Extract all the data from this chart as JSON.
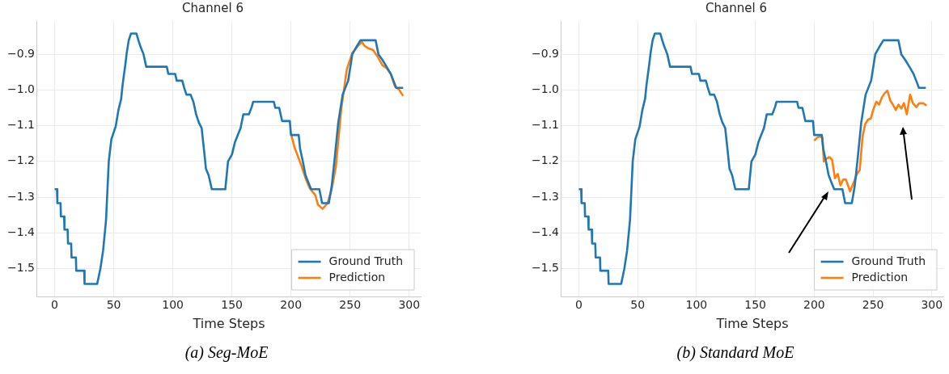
{
  "chart_data": [
    {
      "type": "line",
      "title": "Channel 6",
      "xlabel": "Time Steps",
      "xlim": [
        -14.75,
        309.75
      ],
      "ylim": [
        -1.578,
        -0.807
      ],
      "xticks": [
        0,
        50,
        100,
        150,
        200,
        250,
        300
      ],
      "yticks": [
        {
          "value": -1.5,
          "label": "−1.5"
        },
        {
          "value": -1.4,
          "label": "−1.4"
        },
        {
          "value": -1.3,
          "label": "−1.3"
        },
        {
          "value": -1.2,
          "label": "−1.2"
        },
        {
          "value": -1.1,
          "label": "−1.1"
        },
        {
          "value": -1.0,
          "label": "−1.0"
        },
        {
          "value": -0.9,
          "label": "−0.9"
        }
      ],
      "grid": true,
      "legend": "bottom right",
      "annotations": [
        "(a) Seg-MoE"
      ],
      "series": [
        {
          "name": "Ground Truth",
          "color": "#1f77b4",
          "x": [
            0,
            2,
            2.3,
            5,
            5.3,
            8,
            8.3,
            11,
            11.3,
            14,
            14.3,
            18,
            18.3,
            25,
            25.3,
            36,
            38.7,
            41,
            43.5,
            45.8,
            48,
            51.6,
            54,
            56.3,
            57.5,
            59.9,
            61,
            62.7,
            64.6,
            69.2,
            70.9,
            72.8,
            75.2,
            77.5,
            94.9,
            96.2,
            102,
            103.3,
            108,
            109.6,
            111.5,
            115,
            117.4,
            119.7,
            122,
            124.4,
            126.8,
            128,
            130.3,
            133,
            144.4,
            146.7,
            150,
            152.6,
            155,
            157.3,
            159.7,
            164.4,
            166.7,
            168,
            185.5,
            186.7,
            190,
            192.5,
            199,
            200,
            206.5,
            207.7,
            210,
            212.3,
            214.7,
            217,
            224,
            226.3,
            232,
            234.4,
            236.7,
            240,
            243.7,
            248.4,
            251.9,
            255.3,
            258.8,
            271.6,
            274,
            277.4,
            280.9,
            284.4,
            286.7,
            289,
            294.9
          ],
          "values": [
            -1.278,
            -1.278,
            -1.317,
            -1.317,
            -1.354,
            -1.354,
            -1.391,
            -1.391,
            -1.43,
            -1.43,
            -1.469,
            -1.469,
            -1.506,
            -1.506,
            -1.543,
            -1.543,
            -1.5,
            -1.45,
            -1.364,
            -1.2,
            -1.138,
            -1.103,
            -1.056,
            -1.025,
            -0.986,
            -0.927,
            -0.896,
            -0.861,
            -0.842,
            -0.842,
            -0.861,
            -0.88,
            -0.9,
            -0.935,
            -0.935,
            -0.955,
            -0.955,
            -0.974,
            -0.974,
            -0.994,
            -1.013,
            -1.013,
            -1.033,
            -1.068,
            -1.091,
            -1.107,
            -1.181,
            -1.22,
            -1.239,
            -1.278,
            -1.278,
            -1.2,
            -1.181,
            -1.146,
            -1.126,
            -1.107,
            -1.068,
            -1.068,
            -1.048,
            -1.033,
            -1.033,
            -1.05,
            -1.05,
            -1.087,
            -1.087,
            -1.126,
            -1.126,
            -1.165,
            -1.2,
            -1.239,
            -1.259,
            -1.278,
            -1.278,
            -1.317,
            -1.317,
            -1.27,
            -1.2,
            -1.091,
            -1.013,
            -0.974,
            -0.9,
            -0.88,
            -0.861,
            -0.861,
            -0.9,
            -0.916,
            -0.935,
            -0.955,
            -0.974,
            -0.994,
            -0.994
          ]
        },
        {
          "name": "Prediction",
          "color": "#ff7f0e",
          "x": [
            200,
            203,
            205.3,
            208.8,
            212.3,
            215.8,
            220.5,
            222.8,
            226.7,
            230.9,
            234.4,
            237.9,
            242.6,
            247.2,
            251.9,
            256.5,
            260,
            262.3,
            265.8,
            269.3,
            272.8,
            277.4,
            280.9,
            284.4,
            287.9,
            291.4,
            294.9
          ],
          "values": [
            -1.122,
            -1.161,
            -1.181,
            -1.212,
            -1.247,
            -1.275,
            -1.294,
            -1.321,
            -1.333,
            -1.317,
            -1.278,
            -1.216,
            -1.052,
            -0.943,
            -0.896,
            -0.877,
            -0.866,
            -0.877,
            -0.884,
            -0.888,
            -0.904,
            -0.931,
            -0.939,
            -0.955,
            -0.99,
            -0.999,
            -1.017
          ]
        }
      ]
    },
    {
      "type": "line",
      "title": "Channel 6",
      "xlabel": "Time Steps",
      "xlim": [
        -14.75,
        309.75
      ],
      "ylim": [
        -1.578,
        -0.807
      ],
      "xticks": [
        0,
        50,
        100,
        150,
        200,
        250,
        300
      ],
      "yticks": [
        {
          "value": -1.5,
          "label": "−1.5"
        },
        {
          "value": -1.4,
          "label": "−1.4"
        },
        {
          "value": -1.3,
          "label": "−1.3"
        },
        {
          "value": -1.2,
          "label": "−1.2"
        },
        {
          "value": -1.1,
          "label": "−1.1"
        },
        {
          "value": -1.0,
          "label": "−1.0"
        },
        {
          "value": -0.9,
          "label": "−0.9"
        }
      ],
      "grid": true,
      "legend": "bottom right",
      "annotations": [
        "(b) Standard MoE"
      ],
      "series": [
        {
          "name": "Ground Truth",
          "color": "#1f77b4",
          "x": [
            0,
            2,
            2.3,
            5,
            5.3,
            8,
            8.3,
            11,
            11.3,
            14,
            14.3,
            18,
            18.3,
            25,
            25.3,
            36,
            38.7,
            41,
            43.5,
            45.8,
            48,
            51.6,
            54,
            56.3,
            57.5,
            59.9,
            61,
            62.7,
            64.6,
            69.2,
            70.9,
            72.8,
            75.2,
            77.5,
            94.9,
            96.2,
            102,
            103.3,
            108,
            109.6,
            111.5,
            115,
            117.4,
            119.7,
            122,
            124.4,
            126.8,
            128,
            130.3,
            133,
            144.4,
            146.7,
            150,
            152.6,
            155,
            157.3,
            159.7,
            164.4,
            166.7,
            168,
            185.5,
            186.7,
            190,
            192.5,
            199,
            200,
            206.5,
            207.7,
            210,
            212.3,
            214.7,
            217,
            224,
            226.3,
            232,
            234.4,
            236.7,
            240,
            243.7,
            248.4,
            251.9,
            255.3,
            258.8,
            271.6,
            274,
            277.4,
            280.9,
            284.4,
            286.7,
            289,
            294.9
          ],
          "values": [
            -1.278,
            -1.278,
            -1.317,
            -1.317,
            -1.354,
            -1.354,
            -1.391,
            -1.391,
            -1.43,
            -1.43,
            -1.469,
            -1.469,
            -1.506,
            -1.506,
            -1.543,
            -1.543,
            -1.5,
            -1.45,
            -1.364,
            -1.2,
            -1.138,
            -1.103,
            -1.056,
            -1.025,
            -0.986,
            -0.927,
            -0.896,
            -0.861,
            -0.842,
            -0.842,
            -0.861,
            -0.88,
            -0.9,
            -0.935,
            -0.935,
            -0.955,
            -0.955,
            -0.974,
            -0.974,
            -0.994,
            -1.013,
            -1.013,
            -1.033,
            -1.068,
            -1.091,
            -1.107,
            -1.181,
            -1.22,
            -1.239,
            -1.278,
            -1.278,
            -1.2,
            -1.181,
            -1.146,
            -1.126,
            -1.107,
            -1.068,
            -1.068,
            -1.048,
            -1.033,
            -1.033,
            -1.05,
            -1.05,
            -1.087,
            -1.087,
            -1.126,
            -1.126,
            -1.165,
            -1.2,
            -1.239,
            -1.259,
            -1.278,
            -1.278,
            -1.317,
            -1.317,
            -1.27,
            -1.2,
            -1.091,
            -1.013,
            -0.974,
            -0.9,
            -0.88,
            -0.861,
            -0.861,
            -0.9,
            -0.916,
            -0.935,
            -0.955,
            -0.974,
            -0.994,
            -0.994
          ]
        },
        {
          "name": "Prediction",
          "color": "#ff7f0e",
          "x": [
            200,
            202.3,
            204.7,
            207,
            208.2,
            210.6,
            213,
            215.3,
            217.6,
            220,
            222.3,
            224.6,
            227,
            228.2,
            230.5,
            234,
            236.4,
            238.7,
            241.1,
            243.4,
            245.8,
            248.1,
            250.5,
            252.8,
            255.2,
            257.5,
            259.9,
            262.2,
            264.6,
            266.9,
            269.3,
            271.6,
            274,
            276.3,
            278.7,
            281.5,
            283.8,
            286.9,
            289.2,
            292.7,
            295.5
          ],
          "values": [
            -1.142,
            -1.134,
            -1.13,
            -1.134,
            -1.2,
            -1.192,
            -1.188,
            -1.196,
            -1.247,
            -1.235,
            -1.267,
            -1.251,
            -1.251,
            -1.262,
            -1.284,
            -1.255,
            -1.235,
            -1.224,
            -1.13,
            -1.095,
            -1.083,
            -1.08,
            -1.052,
            -1.033,
            -1.041,
            -1.021,
            -1.009,
            -1.002,
            -1.029,
            -1.041,
            -1.056,
            -1.041,
            -1.052,
            -1.037,
            -1.068,
            -1.013,
            -1.037,
            -1.048,
            -1.037,
            -1.037,
            -1.044
          ]
        }
      ]
    }
  ]
}
